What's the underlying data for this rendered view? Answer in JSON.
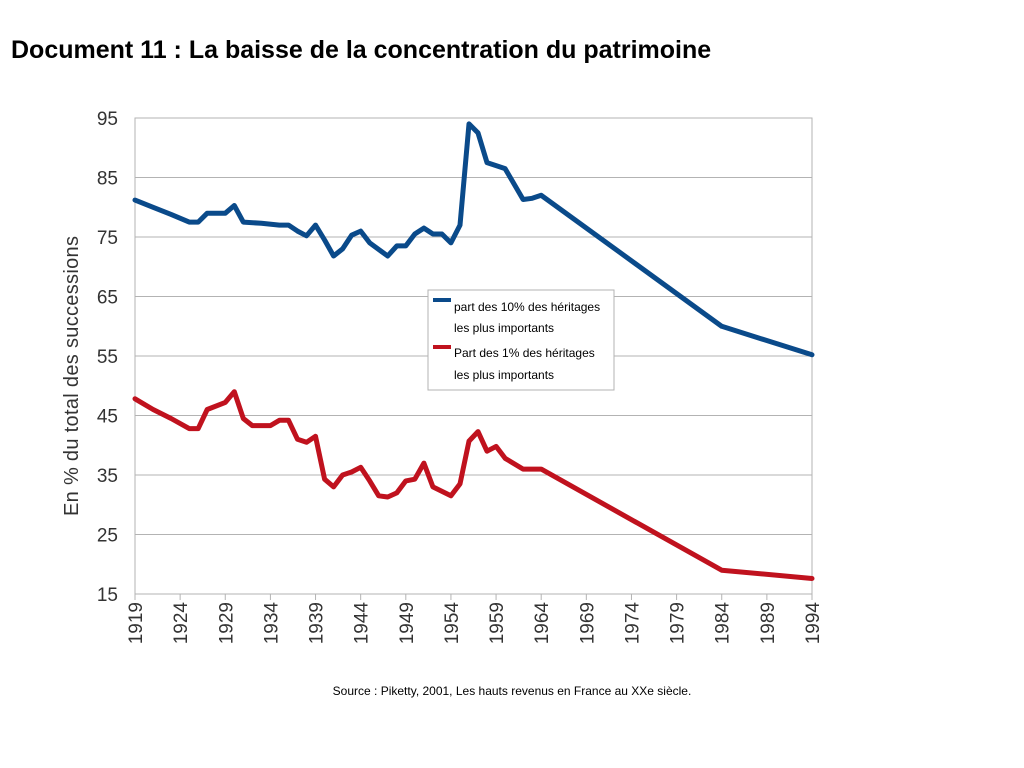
{
  "title": "Document 11 : La baisse de la concentration du patrimoine",
  "source": "Source : Piketty, 2001, Les hauts revenus en France au XXe siècle.",
  "chart_data": {
    "type": "line",
    "title": "",
    "xlabel": "",
    "ylabel": "En % du total des successions",
    "ylim": [
      15,
      95
    ],
    "yticks": [
      15,
      25,
      35,
      45,
      55,
      65,
      75,
      85,
      95
    ],
    "xlim": [
      1919,
      1994
    ],
    "xticks": [
      1919,
      1924,
      1929,
      1934,
      1939,
      1944,
      1949,
      1954,
      1959,
      1964,
      1969,
      1974,
      1979,
      1984,
      1989,
      1994
    ],
    "grid": true,
    "legend_position": "center-right",
    "series": [
      {
        "name": "part des 10% des héritages les plus importants",
        "legend_lines": [
          "part des 10% des héritages",
          "les plus importants"
        ],
        "color": "#0a4a8a",
        "points": [
          [
            1919,
            81.2
          ],
          [
            1921,
            80
          ],
          [
            1923,
            78.8
          ],
          [
            1925,
            77.5
          ],
          [
            1926,
            77.5
          ],
          [
            1927,
            79
          ],
          [
            1929,
            79
          ],
          [
            1930,
            80.3
          ],
          [
            1931,
            77.5
          ],
          [
            1933,
            77.3
          ],
          [
            1935,
            77
          ],
          [
            1936,
            77
          ],
          [
            1937,
            76
          ],
          [
            1938,
            75.2
          ],
          [
            1939,
            77
          ],
          [
            1940,
            74.5
          ],
          [
            1941,
            71.8
          ],
          [
            1942,
            73
          ],
          [
            1943,
            75.3
          ],
          [
            1944,
            76
          ],
          [
            1945,
            74
          ],
          [
            1947,
            71.8
          ],
          [
            1948,
            73.5
          ],
          [
            1949,
            73.5
          ],
          [
            1950,
            75.5
          ],
          [
            1951,
            76.5
          ],
          [
            1952,
            75.5
          ],
          [
            1953,
            75.5
          ],
          [
            1954,
            74
          ],
          [
            1955,
            77
          ],
          [
            1956,
            94
          ],
          [
            1957,
            92.5
          ],
          [
            1958,
            87.5
          ],
          [
            1959,
            87
          ],
          [
            1960,
            86.5
          ],
          [
            1962,
            81.3
          ],
          [
            1963,
            81.5
          ],
          [
            1964,
            82
          ],
          [
            1984,
            60
          ],
          [
            1994,
            55.2
          ]
        ]
      },
      {
        "name": "Part des 1% des héritages les plus importants",
        "legend_lines": [
          "Part des 1% des héritages",
          "les plus importants"
        ],
        "color": "#c0121e",
        "points": [
          [
            1919,
            47.8
          ],
          [
            1921,
            46
          ],
          [
            1923,
            44.5
          ],
          [
            1925,
            42.8
          ],
          [
            1926,
            42.8
          ],
          [
            1927,
            46
          ],
          [
            1929,
            47.2
          ],
          [
            1930,
            49
          ],
          [
            1931,
            44.5
          ],
          [
            1932,
            43.3
          ],
          [
            1934,
            43.3
          ],
          [
            1935,
            44.2
          ],
          [
            1936,
            44.2
          ],
          [
            1937,
            41
          ],
          [
            1938,
            40.5
          ],
          [
            1939,
            41.5
          ],
          [
            1940,
            34.3
          ],
          [
            1941,
            33
          ],
          [
            1942,
            35
          ],
          [
            1943,
            35.5
          ],
          [
            1944,
            36.3
          ],
          [
            1945,
            34
          ],
          [
            1946,
            31.5
          ],
          [
            1947,
            31.3
          ],
          [
            1948,
            32
          ],
          [
            1949,
            34
          ],
          [
            1950,
            34.3
          ],
          [
            1951,
            37
          ],
          [
            1952,
            33
          ],
          [
            1954,
            31.5
          ],
          [
            1955,
            33.5
          ],
          [
            1956,
            40.7
          ],
          [
            1957,
            42.3
          ],
          [
            1958,
            39
          ],
          [
            1959,
            39.8
          ],
          [
            1960,
            37.8
          ],
          [
            1962,
            36
          ],
          [
            1964,
            36
          ],
          [
            1984,
            19
          ],
          [
            1994,
            17.6
          ]
        ]
      }
    ]
  }
}
